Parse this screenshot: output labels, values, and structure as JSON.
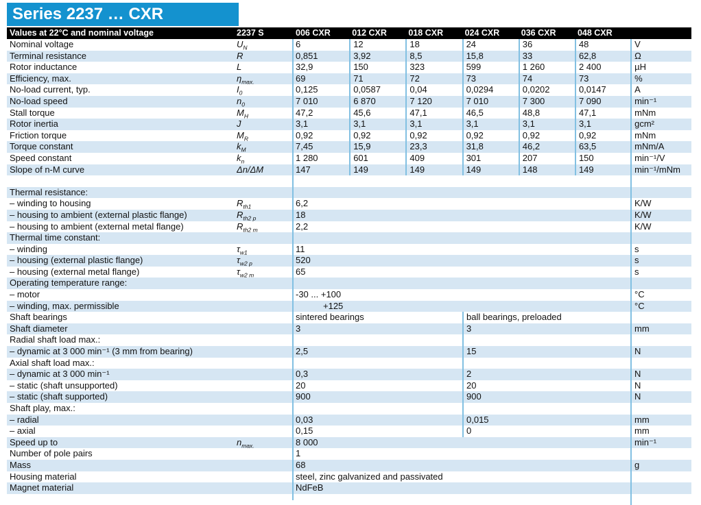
{
  "title": "Series 2237 … CXR",
  "colors": {
    "banner": "#1492cf",
    "header_bar": "#000000",
    "row_stripe": "#d6e6f3",
    "divider": "#82c0e2",
    "text": "#111111"
  },
  "table_header": {
    "condition": "Values at 22°C and nominal voltage",
    "series": "2237 S",
    "variants": [
      "006 CXR",
      "012 CXR",
      "018 CXR",
      "024 CXR",
      "036 CXR",
      "048 CXR"
    ]
  },
  "spec_rows": [
    {
      "label": "Nominal voltage",
      "sym": "U",
      "sub": "N",
      "values": [
        "6",
        "12",
        "18",
        "24",
        "36",
        "48"
      ],
      "unit": "V"
    },
    {
      "label": "Terminal resistance",
      "sym": "R",
      "sub": "",
      "values": [
        "0,851",
        "3,92",
        "8,5",
        "15,8",
        "33",
        "62,8"
      ],
      "unit": "Ω"
    },
    {
      "label": "Rotor inductance",
      "sym": "L",
      "sub": "",
      "values": [
        "32,9",
        "150",
        "323",
        "599",
        "1 260",
        "2 400"
      ],
      "unit": "µH"
    },
    {
      "label": "Efficiency, max.",
      "sym": "η",
      "sub": "max.",
      "values": [
        "69",
        "71",
        "72",
        "73",
        "74",
        "73"
      ],
      "unit": "%"
    },
    {
      "label": "No-load current, typ.",
      "sym": "I",
      "sub": "0",
      "values": [
        "0,125",
        "0,0587",
        "0,04",
        "0,0294",
        "0,0202",
        "0,0147"
      ],
      "unit": "A"
    },
    {
      "label": "No-load speed",
      "sym": "n",
      "sub": "0",
      "values": [
        "7 010",
        "6 870",
        "7 120",
        "7 010",
        "7 300",
        "7 090"
      ],
      "unit": "min⁻¹"
    },
    {
      "label": "Stall torque",
      "sym": "M",
      "sub": "H",
      "values": [
        "47,2",
        "45,6",
        "47,1",
        "46,5",
        "48,8",
        "47,1"
      ],
      "unit": "mNm"
    },
    {
      "label": "Rotor inertia",
      "sym": "J",
      "sub": "",
      "values": [
        "3,1",
        "3,1",
        "3,1",
        "3,1",
        "3,1",
        "3,1"
      ],
      "unit": "gcm²"
    },
    {
      "label": "Friction torque",
      "sym": "M",
      "sub": "R",
      "values": [
        "0,92",
        "0,92",
        "0,92",
        "0,92",
        "0,92",
        "0,92"
      ],
      "unit": "mNm"
    },
    {
      "label": "Torque constant",
      "sym": "k",
      "sub": "M",
      "values": [
        "7,45",
        "15,9",
        "23,3",
        "31,8",
        "46,2",
        "63,5"
      ],
      "unit": "mNm/A"
    },
    {
      "label": "Speed constant",
      "sym": "k",
      "sub": "n",
      "values": [
        "1 280",
        "601",
        "409",
        "301",
        "207",
        "150"
      ],
      "unit": "min⁻¹/V"
    },
    {
      "label": "Slope of n-M curve",
      "sym": "Δn/ΔM",
      "sub": "",
      "values": [
        "147",
        "149",
        "149",
        "149",
        "148",
        "149"
      ],
      "unit": "min⁻¹/mNm"
    }
  ],
  "detail_rows": [
    {
      "kind": "gap"
    },
    {
      "kind": "head",
      "label": "Thermal resistance:"
    },
    {
      "kind": "span",
      "label": "– winding to housing",
      "sym": "R",
      "sub": "th1",
      "value": "6,2",
      "unit": "K/W"
    },
    {
      "kind": "span",
      "label": "– housing to ambient (external plastic flange)",
      "sym": "R",
      "sub": "th2 p",
      "value": "18",
      "unit": "K/W"
    },
    {
      "kind": "span",
      "label": "– housing to ambient (external metal flange)",
      "sym": "R",
      "sub": "th2 m",
      "value": "2,2",
      "unit": "K/W"
    },
    {
      "kind": "head",
      "label": "Thermal time constant:"
    },
    {
      "kind": "span",
      "label": "– winding",
      "sym": "τ",
      "sub": "w1",
      "value": "11",
      "unit": "s"
    },
    {
      "kind": "span",
      "label": "– housing (external plastic flange)",
      "sym": "τ",
      "sub": "w2 p",
      "value": "520",
      "unit": "s"
    },
    {
      "kind": "span",
      "label": "– housing (external metal flange)",
      "sym": "τ",
      "sub": "w2 m",
      "value": "65",
      "unit": "s"
    },
    {
      "kind": "head",
      "label": "Operating temperature range:"
    },
    {
      "kind": "span",
      "label": "– motor",
      "sym": "",
      "sub": "",
      "value": "-30 ... +100",
      "unit": "°C"
    },
    {
      "kind": "span",
      "label": "– winding, max. permissible",
      "sym": "",
      "sub": "",
      "value": "+125",
      "unit": "°C",
      "indent": true
    },
    {
      "kind": "two",
      "label": "Shaft bearings",
      "left": "sintered bearings",
      "right": "ball bearings, preloaded",
      "unit": "",
      "mid": true
    },
    {
      "kind": "two",
      "label": "Shaft diameter",
      "left": "3",
      "right": "3",
      "unit": "mm",
      "mid": true
    },
    {
      "kind": "head",
      "label": "Radial shaft load max.:",
      "mid": true
    },
    {
      "kind": "two",
      "label": "– dynamic at 3 000 min⁻¹ (3 mm from bearing)",
      "left": "2,5",
      "right": "15",
      "unit": "N",
      "mid": true
    },
    {
      "kind": "head",
      "label": "Axial shaft load max.:",
      "mid": true
    },
    {
      "kind": "two",
      "label": "– dynamic at 3 000 min⁻¹",
      "left": "0,3",
      "right": "2",
      "unit": "N",
      "mid": true
    },
    {
      "kind": "two",
      "label": "– static (shaft unsupported)",
      "left": "20",
      "right": "20",
      "unit": "N",
      "mid": true
    },
    {
      "kind": "two",
      "label": "– static (shaft supported)",
      "left": "900",
      "right": "900",
      "unit": "N",
      "mid": true
    },
    {
      "kind": "head",
      "label": "Shaft play, max.:",
      "mid": true
    },
    {
      "kind": "two",
      "label": "– radial",
      "left": "0,03",
      "right": "0,015",
      "unit": "mm",
      "mid": true
    },
    {
      "kind": "two",
      "label": "– axial",
      "left": "0,15",
      "right": "0",
      "unit": "mm",
      "mid": true
    },
    {
      "kind": "span",
      "label": "Speed up to",
      "sym": "n",
      "sub": "max.",
      "value": "8 000",
      "unit": "min⁻¹"
    },
    {
      "kind": "span",
      "label": "Number of pole pairs",
      "sym": "",
      "sub": "",
      "value": "1",
      "unit": ""
    },
    {
      "kind": "span",
      "label": "Mass",
      "sym": "",
      "sub": "",
      "value": "68",
      "unit": "g"
    },
    {
      "kind": "span",
      "label": "Housing material",
      "sym": "",
      "sub": "",
      "value": "steel, zinc galvanized and passivated",
      "unit": ""
    },
    {
      "kind": "span",
      "label": "Magnet material",
      "sym": "",
      "sub": "",
      "value": "NdFeB",
      "unit": ""
    },
    {
      "kind": "gap"
    }
  ]
}
